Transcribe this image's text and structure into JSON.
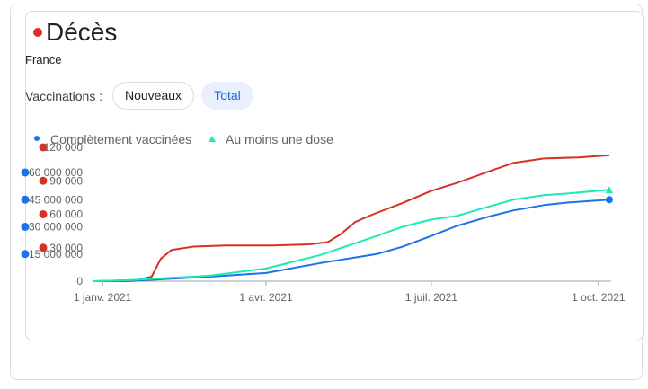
{
  "header": {
    "title": "Décès",
    "location": "France"
  },
  "vaccinations": {
    "label": "Vaccinations :",
    "options": [
      "Nouveaux",
      "Total"
    ],
    "selected": "Total"
  },
  "legend": {
    "fully_vaccinated": "Complètement vaccinées",
    "at_least_one_dose": "Au moins une dose"
  },
  "colors": {
    "deaths": "#d93025",
    "fully_vaccinated": "#1a73e8",
    "at_least_one_dose": "#1de9b6"
  },
  "chart_data": {
    "type": "line",
    "x_ticks": [
      "1 janv. 2021",
      "1 avr. 2021",
      "1 juil. 2021",
      "1 oct. 2021"
    ],
    "x_range": [
      "2020-12-27",
      "2021-10-08"
    ],
    "y_left": {
      "ticks": [
        0,
        15000000,
        30000000,
        45000000,
        60000000
      ],
      "tick_labels": [
        "0",
        "15 000 000",
        "30 000 000",
        "45 000 000",
        "60 000 000"
      ],
      "range": [
        0,
        60000000
      ]
    },
    "y_right": {
      "ticks": [
        0,
        30000,
        60000,
        90000,
        120000
      ],
      "tick_labels": [
        "0",
        "30 000",
        "60 000",
        "90 000",
        "120 000"
      ],
      "range": [
        0,
        120000
      ]
    },
    "series": [
      {
        "name": "Décès",
        "axis": "right",
        "points": [
          [
            "2020-12-27",
            0
          ],
          [
            "2021-01-20",
            1000
          ],
          [
            "2021-01-28",
            4000
          ],
          [
            "2021-02-02",
            20000
          ],
          [
            "2021-02-08",
            28000
          ],
          [
            "2021-02-20",
            31000
          ],
          [
            "2021-03-10",
            32000
          ],
          [
            "2021-04-05",
            32000
          ],
          [
            "2021-04-25",
            33000
          ],
          [
            "2021-05-05",
            35000
          ],
          [
            "2021-05-12",
            42000
          ],
          [
            "2021-05-20",
            53000
          ],
          [
            "2021-05-30",
            60000
          ],
          [
            "2021-06-15",
            70000
          ],
          [
            "2021-07-01",
            81000
          ],
          [
            "2021-07-15",
            88000
          ],
          [
            "2021-08-01",
            98000
          ],
          [
            "2021-08-15",
            106000
          ],
          [
            "2021-09-01",
            110000
          ],
          [
            "2021-09-20",
            111000
          ],
          [
            "2021-10-07",
            113000
          ]
        ]
      },
      {
        "name": "Complètement vaccinées",
        "axis": "left",
        "points": [
          [
            "2020-12-27",
            0
          ],
          [
            "2021-01-15",
            0
          ],
          [
            "2021-02-01",
            1000000
          ],
          [
            "2021-03-01",
            2500000
          ],
          [
            "2021-04-01",
            4500000
          ],
          [
            "2021-05-01",
            10000000
          ],
          [
            "2021-06-01",
            15000000
          ],
          [
            "2021-06-15",
            19000000
          ],
          [
            "2021-07-01",
            25000000
          ],
          [
            "2021-07-15",
            30500000
          ],
          [
            "2021-08-01",
            35500000
          ],
          [
            "2021-08-15",
            39000000
          ],
          [
            "2021-09-01",
            42000000
          ],
          [
            "2021-09-15",
            43500000
          ],
          [
            "2021-10-07",
            45000000
          ]
        ]
      },
      {
        "name": "Au moins une dose",
        "axis": "left",
        "points": [
          [
            "2020-12-27",
            0
          ],
          [
            "2021-01-15",
            500000
          ],
          [
            "2021-02-01",
            1500000
          ],
          [
            "2021-03-01",
            3000000
          ],
          [
            "2021-04-01",
            7000000
          ],
          [
            "2021-05-01",
            14500000
          ],
          [
            "2021-06-01",
            25000000
          ],
          [
            "2021-06-15",
            30000000
          ],
          [
            "2021-07-01",
            34000000
          ],
          [
            "2021-07-15",
            36000000
          ],
          [
            "2021-08-01",
            41000000
          ],
          [
            "2021-08-15",
            45000000
          ],
          [
            "2021-09-01",
            47500000
          ],
          [
            "2021-09-15",
            48500000
          ],
          [
            "2021-10-07",
            50500000
          ]
        ]
      }
    ]
  }
}
